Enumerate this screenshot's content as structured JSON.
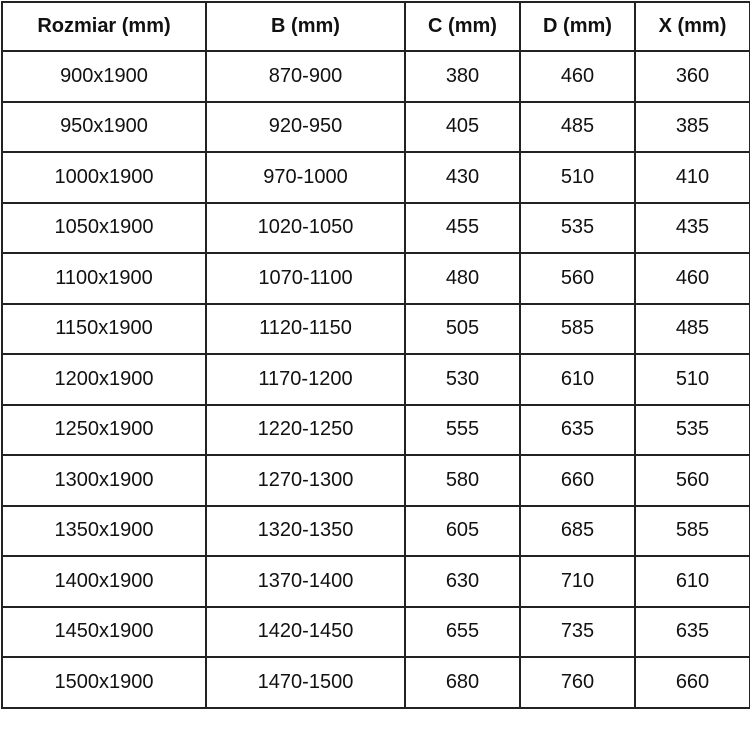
{
  "table": {
    "headers": [
      "Rozmiar (mm)",
      "B (mm)",
      "C (mm)",
      "D (mm)",
      "X (mm)"
    ],
    "rows": [
      [
        "900x1900",
        "870-900",
        "380",
        "460",
        "360"
      ],
      [
        "950x1900",
        "920-950",
        "405",
        "485",
        "385"
      ],
      [
        "1000x1900",
        "970-1000",
        "430",
        "510",
        "410"
      ],
      [
        "1050x1900",
        "1020-1050",
        "455",
        "535",
        "435"
      ],
      [
        "1100x1900",
        "1070-1100",
        "480",
        "560",
        "460"
      ],
      [
        "1150x1900",
        "1120-1150",
        "505",
        "585",
        "485"
      ],
      [
        "1200x1900",
        "1170-1200",
        "530",
        "610",
        "510"
      ],
      [
        "1250x1900",
        "1220-1250",
        "555",
        "635",
        "535"
      ],
      [
        "1300x1900",
        "1270-1300",
        "580",
        "660",
        "560"
      ],
      [
        "1350x1900",
        "1320-1350",
        "605",
        "685",
        "585"
      ],
      [
        "1400x1900",
        "1370-1400",
        "630",
        "710",
        "610"
      ],
      [
        "1450x1900",
        "1420-1450",
        "655",
        "735",
        "635"
      ],
      [
        "1500x1900",
        "1470-1500",
        "680",
        "760",
        "660"
      ]
    ]
  }
}
